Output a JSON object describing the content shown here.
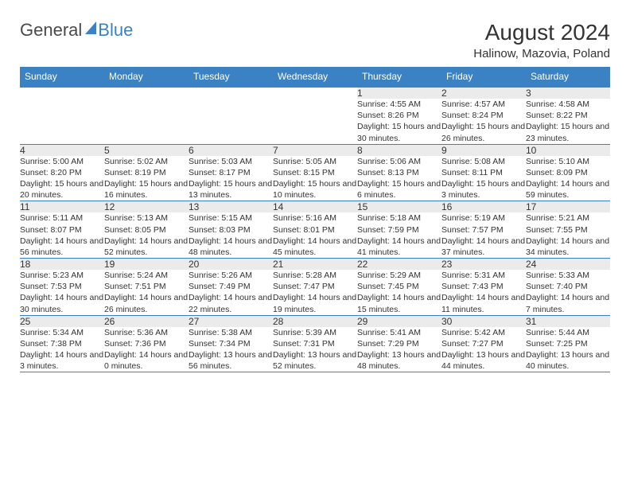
{
  "logo": {
    "text1": "General",
    "text2": "Blue"
  },
  "title": "August 2024",
  "location": "Halinow, Mazovia, Poland",
  "colors": {
    "header_bg": "#3b82c4",
    "header_text": "#ffffff",
    "daynum_bg": "#ebebeb",
    "text": "#333333",
    "border": "#3b82c4",
    "logo_blue": "#3b82c4",
    "logo_gray": "#4a4a4a",
    "page_bg": "#ffffff"
  },
  "weekdays": [
    "Sunday",
    "Monday",
    "Tuesday",
    "Wednesday",
    "Thursday",
    "Friday",
    "Saturday"
  ],
  "weeks": [
    {
      "nums": [
        "",
        "",
        "",
        "",
        "1",
        "2",
        "3"
      ],
      "data": [
        null,
        null,
        null,
        null,
        {
          "sunrise": "4:55 AM",
          "sunset": "8:26 PM",
          "daylight": "15 hours and 30 minutes."
        },
        {
          "sunrise": "4:57 AM",
          "sunset": "8:24 PM",
          "daylight": "15 hours and 26 minutes."
        },
        {
          "sunrise": "4:58 AM",
          "sunset": "8:22 PM",
          "daylight": "15 hours and 23 minutes."
        }
      ]
    },
    {
      "nums": [
        "4",
        "5",
        "6",
        "7",
        "8",
        "9",
        "10"
      ],
      "data": [
        {
          "sunrise": "5:00 AM",
          "sunset": "8:20 PM",
          "daylight": "15 hours and 20 minutes."
        },
        {
          "sunrise": "5:02 AM",
          "sunset": "8:19 PM",
          "daylight": "15 hours and 16 minutes."
        },
        {
          "sunrise": "5:03 AM",
          "sunset": "8:17 PM",
          "daylight": "15 hours and 13 minutes."
        },
        {
          "sunrise": "5:05 AM",
          "sunset": "8:15 PM",
          "daylight": "15 hours and 10 minutes."
        },
        {
          "sunrise": "5:06 AM",
          "sunset": "8:13 PM",
          "daylight": "15 hours and 6 minutes."
        },
        {
          "sunrise": "5:08 AM",
          "sunset": "8:11 PM",
          "daylight": "15 hours and 3 minutes."
        },
        {
          "sunrise": "5:10 AM",
          "sunset": "8:09 PM",
          "daylight": "14 hours and 59 minutes."
        }
      ]
    },
    {
      "nums": [
        "11",
        "12",
        "13",
        "14",
        "15",
        "16",
        "17"
      ],
      "data": [
        {
          "sunrise": "5:11 AM",
          "sunset": "8:07 PM",
          "daylight": "14 hours and 56 minutes."
        },
        {
          "sunrise": "5:13 AM",
          "sunset": "8:05 PM",
          "daylight": "14 hours and 52 minutes."
        },
        {
          "sunrise": "5:15 AM",
          "sunset": "8:03 PM",
          "daylight": "14 hours and 48 minutes."
        },
        {
          "sunrise": "5:16 AM",
          "sunset": "8:01 PM",
          "daylight": "14 hours and 45 minutes."
        },
        {
          "sunrise": "5:18 AM",
          "sunset": "7:59 PM",
          "daylight": "14 hours and 41 minutes."
        },
        {
          "sunrise": "5:19 AM",
          "sunset": "7:57 PM",
          "daylight": "14 hours and 37 minutes."
        },
        {
          "sunrise": "5:21 AM",
          "sunset": "7:55 PM",
          "daylight": "14 hours and 34 minutes."
        }
      ]
    },
    {
      "nums": [
        "18",
        "19",
        "20",
        "21",
        "22",
        "23",
        "24"
      ],
      "data": [
        {
          "sunrise": "5:23 AM",
          "sunset": "7:53 PM",
          "daylight": "14 hours and 30 minutes."
        },
        {
          "sunrise": "5:24 AM",
          "sunset": "7:51 PM",
          "daylight": "14 hours and 26 minutes."
        },
        {
          "sunrise": "5:26 AM",
          "sunset": "7:49 PM",
          "daylight": "14 hours and 22 minutes."
        },
        {
          "sunrise": "5:28 AM",
          "sunset": "7:47 PM",
          "daylight": "14 hours and 19 minutes."
        },
        {
          "sunrise": "5:29 AM",
          "sunset": "7:45 PM",
          "daylight": "14 hours and 15 minutes."
        },
        {
          "sunrise": "5:31 AM",
          "sunset": "7:43 PM",
          "daylight": "14 hours and 11 minutes."
        },
        {
          "sunrise": "5:33 AM",
          "sunset": "7:40 PM",
          "daylight": "14 hours and 7 minutes."
        }
      ]
    },
    {
      "nums": [
        "25",
        "26",
        "27",
        "28",
        "29",
        "30",
        "31"
      ],
      "data": [
        {
          "sunrise": "5:34 AM",
          "sunset": "7:38 PM",
          "daylight": "14 hours and 3 minutes."
        },
        {
          "sunrise": "5:36 AM",
          "sunset": "7:36 PM",
          "daylight": "14 hours and 0 minutes."
        },
        {
          "sunrise": "5:38 AM",
          "sunset": "7:34 PM",
          "daylight": "13 hours and 56 minutes."
        },
        {
          "sunrise": "5:39 AM",
          "sunset": "7:31 PM",
          "daylight": "13 hours and 52 minutes."
        },
        {
          "sunrise": "5:41 AM",
          "sunset": "7:29 PM",
          "daylight": "13 hours and 48 minutes."
        },
        {
          "sunrise": "5:42 AM",
          "sunset": "7:27 PM",
          "daylight": "13 hours and 44 minutes."
        },
        {
          "sunrise": "5:44 AM",
          "sunset": "7:25 PM",
          "daylight": "13 hours and 40 minutes."
        }
      ]
    }
  ],
  "labels": {
    "sunrise": "Sunrise:",
    "sunset": "Sunset:",
    "daylight": "Daylight:"
  }
}
